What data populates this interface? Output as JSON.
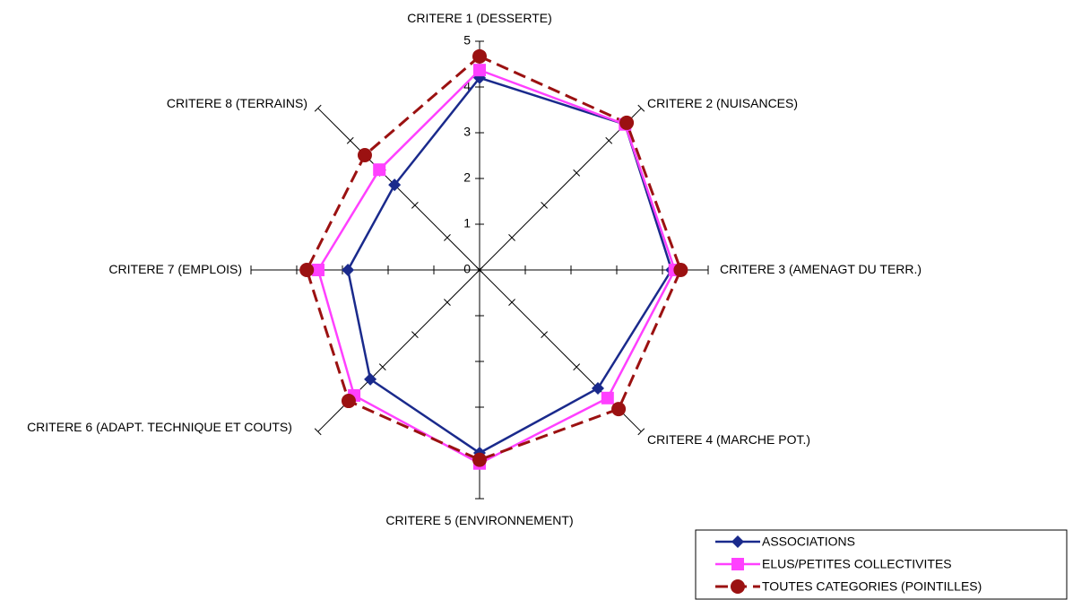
{
  "chart_data": {
    "type": "radar",
    "categories": [
      "CRITERE 1 (DESSERTE)",
      "CRITERE 2 (NUISANCES)",
      "CRITERE 3 (AMENAGT DU TERR.)",
      "CRITERE 4 (MARCHE POT.)",
      "CRITERE 5 (ENVIRONNEMENT)",
      "CRITERE 6 (ADAPT. TECHNIQUE ET COUTS)",
      "CRITERE 7 (EMPLOIS)",
      "CRITERE 8 (TERRAINS)"
    ],
    "series": [
      {
        "name": "ASSOCIATIONS",
        "color": "#1a2a8c",
        "marker": "diamond",
        "values": [
          4.2,
          4.5,
          4.2,
          3.66,
          4.0,
          3.38,
          2.88,
          2.63
        ]
      },
      {
        "name": "ELUS/PETITES COLLECTIVITES",
        "color": "#ff40ff",
        "marker": "square",
        "values": [
          4.37,
          4.5,
          4.27,
          3.96,
          4.23,
          3.88,
          3.53,
          3.1
        ]
      },
      {
        "name": "TOUTES CATEGORIES (POINTILLES)",
        "color": "#9b1111",
        "marker": "circle",
        "dashed": true,
        "values": [
          4.67,
          4.55,
          4.4,
          4.3,
          4.15,
          4.05,
          3.78,
          3.55
        ]
      }
    ],
    "ylim": [
      0,
      5
    ],
    "yticks": [
      0,
      1,
      2,
      3,
      4,
      5
    ],
    "legend": "bottom-right"
  }
}
